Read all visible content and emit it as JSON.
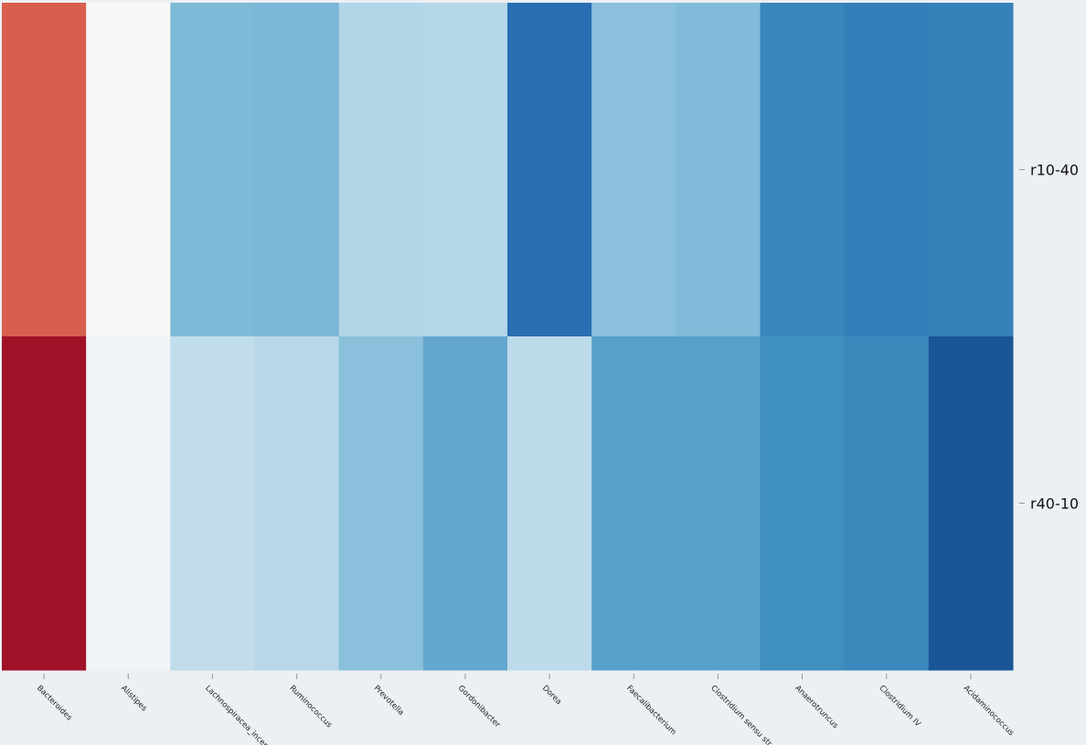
{
  "chart_data": {
    "type": "heatmap",
    "title": "",
    "xlabel": "",
    "ylabel": "",
    "colormap": "RdBu_r (red = high, blue = low)",
    "color_range": [
      -1,
      1
    ],
    "colorbar": false,
    "rows": [
      "r10-40",
      "r40-10"
    ],
    "columns": [
      "Bacteroides",
      "Alistipes",
      "Lachnospiracea_incer",
      "Ruminococcus",
      "Prevotella",
      "Gordonibacter",
      "Dorea",
      "Faecalibacterium",
      "Clostridium sensu str",
      "Anaerotruncus",
      "Clostridium IV",
      "Acidaminococcus"
    ],
    "values": [
      [
        0.6,
        0.0,
        -0.45,
        -0.46,
        -0.3,
        -0.29,
        -0.76,
        -0.42,
        -0.44,
        -0.66,
        -0.69,
        -0.68
      ],
      [
        0.85,
        -0.03,
        -0.25,
        -0.28,
        -0.42,
        -0.52,
        -0.26,
        -0.55,
        -0.55,
        -0.62,
        -0.65,
        -0.86
      ]
    ]
  }
}
